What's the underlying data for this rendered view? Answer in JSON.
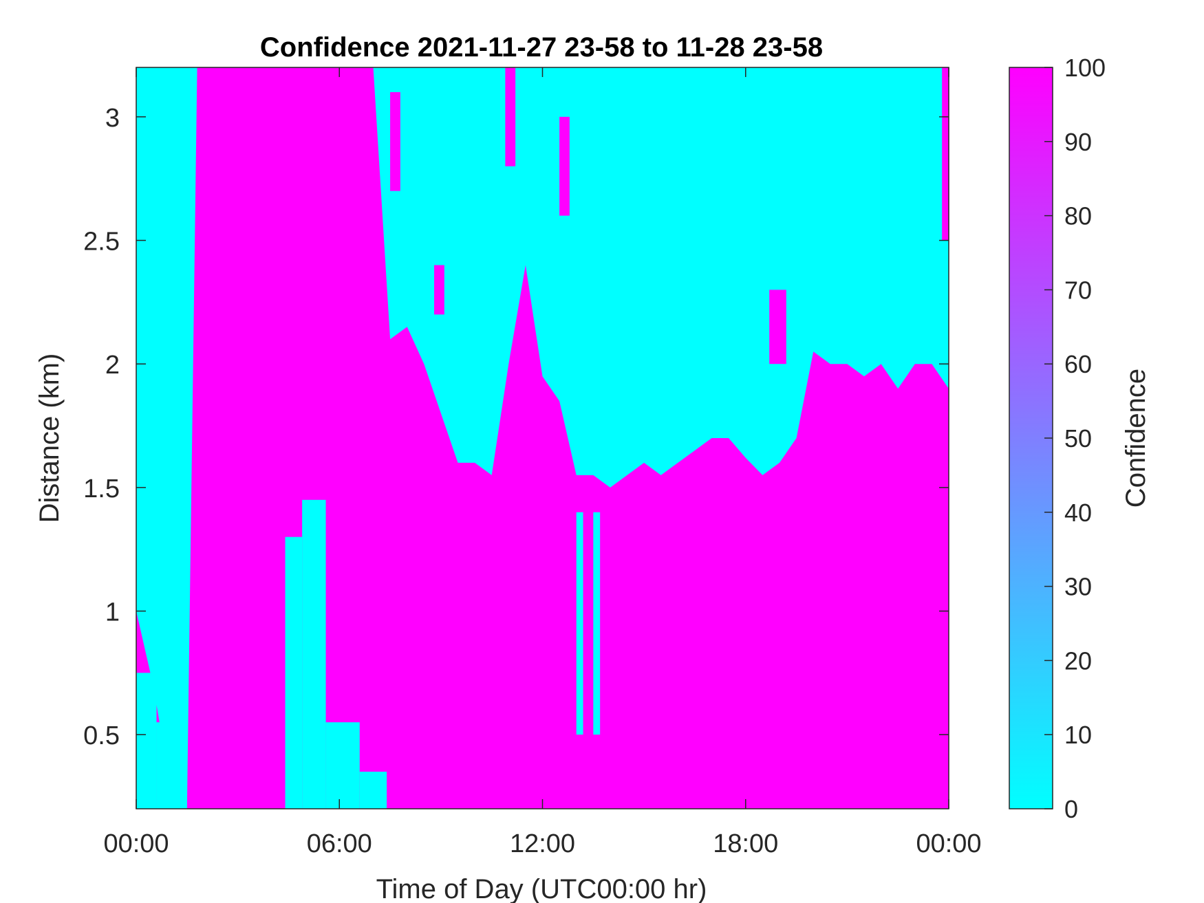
{
  "chart_data": {
    "type": "heatmap",
    "title": "Confidence 2021-11-27 23-58 to 11-28 23-58",
    "xlabel": "Time of Day (UTC00:00 hr)",
    "ylabel": "Distance (km)",
    "x_tick_labels": [
      "00:00",
      "06:00",
      "12:00",
      "18:00",
      "00:00"
    ],
    "x_range_hours": [
      0,
      24
    ],
    "y_ticks": [
      0.5,
      1,
      1.5,
      2,
      2.5,
      3
    ],
    "y_tick_labels": [
      "0.5",
      "1",
      "1.5",
      "2",
      "2.5",
      "3"
    ],
    "y_range_km": [
      0.2,
      3.2
    ],
    "colorbar": {
      "label": "Confidence",
      "range": [
        0,
        100
      ],
      "ticks": [
        0,
        10,
        20,
        30,
        40,
        50,
        60,
        70,
        80,
        90,
        100
      ],
      "low_color": "#00ffff",
      "high_color": "#ff00ff"
    },
    "background_value": 0,
    "high_value": 100,
    "boundary_hours": [
      0,
      0.5,
      1.0,
      1.5,
      1.8,
      1.9,
      3,
      4.5,
      5,
      5.5,
      6,
      6.5,
      7,
      7.5,
      8,
      8.5,
      9,
      9.5,
      10,
      10.5,
      11,
      11.5,
      12,
      12.5,
      13,
      13.5,
      14,
      14.5,
      15,
      15.5,
      16,
      16.5,
      17,
      17.5,
      18,
      18.5,
      19,
      19.5,
      20,
      20.5,
      21,
      21.5,
      22,
      22.5,
      23,
      23.5,
      24
    ],
    "high_confidence_floor_to_km": [
      1.0,
      0.7,
      0.3,
      0.2,
      3.2,
      3.2,
      3.2,
      3.2,
      3.2,
      3.2,
      3.2,
      3.2,
      3.2,
      2.1,
      2.15,
      2.0,
      1.8,
      1.6,
      1.6,
      1.55,
      2.0,
      2.4,
      1.95,
      1.85,
      1.55,
      1.55,
      1.5,
      1.55,
      1.6,
      1.55,
      1.6,
      1.65,
      1.7,
      1.7,
      1.62,
      1.55,
      1.6,
      1.7,
      2.05,
      2.0,
      2.0,
      1.95,
      2.0,
      1.9,
      2.0,
      2.0,
      1.9
    ],
    "low_confidence_bands": [
      {
        "x0": 0.0,
        "x1": 0.6,
        "y0": 0.2,
        "y1": 0.75
      },
      {
        "x0": 0.6,
        "x1": 1.5,
        "y0": 0.2,
        "y1": 0.55
      },
      {
        "x0": 4.4,
        "x1": 4.9,
        "y0": 0.2,
        "y1": 1.3
      },
      {
        "x0": 4.9,
        "x1": 5.6,
        "y0": 0.2,
        "y1": 1.45
      },
      {
        "x0": 5.6,
        "x1": 6.6,
        "y0": 0.2,
        "y1": 0.55
      },
      {
        "x0": 6.6,
        "x1": 7.4,
        "y0": 0.2,
        "y1": 0.35
      },
      {
        "x0": 13.0,
        "x1": 13.2,
        "y0": 0.5,
        "y1": 1.4
      },
      {
        "x0": 13.5,
        "x1": 13.7,
        "y0": 0.5,
        "y1": 1.4
      }
    ],
    "high_confidence_bands": [
      {
        "x0": 5.0,
        "x1": 5.3,
        "y0": 2.7,
        "y1": 3.2
      },
      {
        "x0": 6.5,
        "x1": 6.7,
        "y0": 2.6,
        "y1": 3.2
      },
      {
        "x0": 7.5,
        "x1": 7.8,
        "y0": 2.7,
        "y1": 3.1
      },
      {
        "x0": 8.8,
        "x1": 9.1,
        "y0": 2.2,
        "y1": 2.4
      },
      {
        "x0": 10.9,
        "x1": 11.2,
        "y0": 2.8,
        "y1": 3.2
      },
      {
        "x0": 12.5,
        "x1": 12.8,
        "y0": 2.6,
        "y1": 3.0
      },
      {
        "x0": 18.7,
        "x1": 19.2,
        "y0": 2.0,
        "y1": 2.3
      },
      {
        "x0": 23.8,
        "x1": 24.0,
        "y0": 2.5,
        "y1": 3.2
      }
    ]
  }
}
